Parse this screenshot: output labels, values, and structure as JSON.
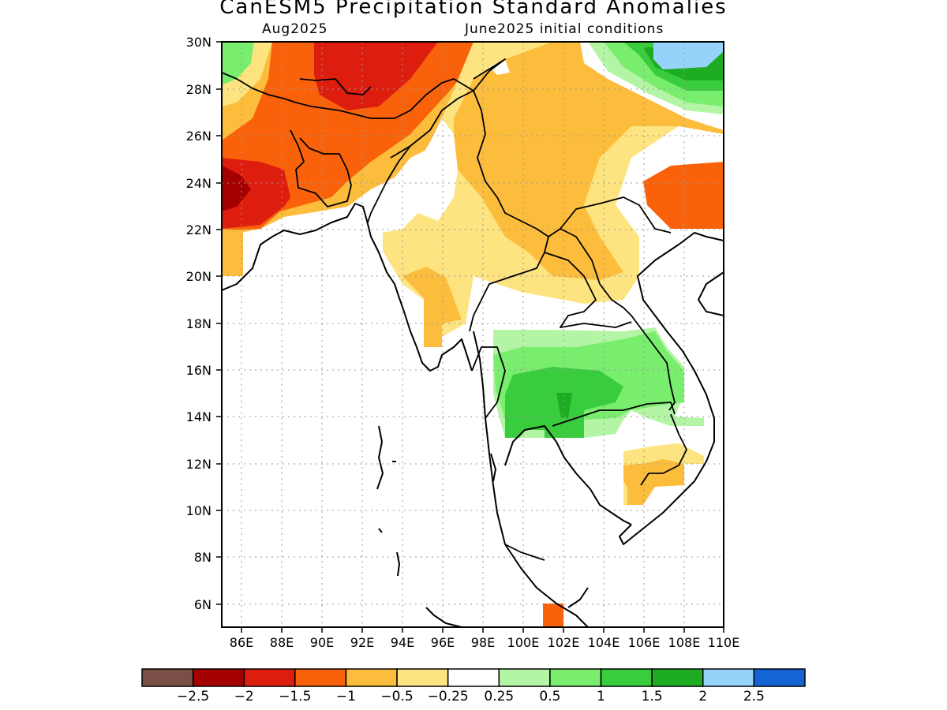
{
  "title": "CanESM5 Precipitation Standard Anomalies",
  "subtitle_left": "Aug2025",
  "subtitle_right": "June2025 initial conditions",
  "map": {
    "lon_range": [
      85,
      110
    ],
    "lat_range": [
      5,
      30
    ],
    "lat_ticks": [
      "30N",
      "28N",
      "26N",
      "24N",
      "22N",
      "20N",
      "18N",
      "16N",
      "14N",
      "12N",
      "10N",
      "8N",
      "6N"
    ],
    "lon_ticks": [
      "86E",
      "88E",
      "90E",
      "92E",
      "94E",
      "96E",
      "98E",
      "100E",
      "102E",
      "104E",
      "106E",
      "108E",
      "110E"
    ],
    "gridlines": "dotted"
  },
  "colorbar": {
    "colors": [
      "#7a4f46",
      "#a50000",
      "#dd1e0e",
      "#f9620a",
      "#fdbd3c",
      "#fde480",
      "#ffffff",
      "#b4f5a5",
      "#79ed6e",
      "#39cc3c",
      "#1eac22",
      "#96d3fb",
      "#1464d6"
    ],
    "labels": [
      "-2.5",
      "-2",
      "-1.5",
      "-1",
      "-0.5",
      "-0.25",
      "0.25",
      "0.5",
      "1",
      "1.5",
      "2",
      "2.5"
    ]
  },
  "legend_palette": {
    "white": "#ffffff",
    "yellow": "#fde480",
    "light_orange": "#fdbd3c",
    "orange": "#f9620a",
    "red": "#dd1e0e",
    "dark_red": "#a50000",
    "light_green": "#b4f5a5",
    "green": "#79ed6e",
    "mid_green": "#39cc3c",
    "dark_green": "#1eac22",
    "light_blue": "#96d3fb"
  }
}
